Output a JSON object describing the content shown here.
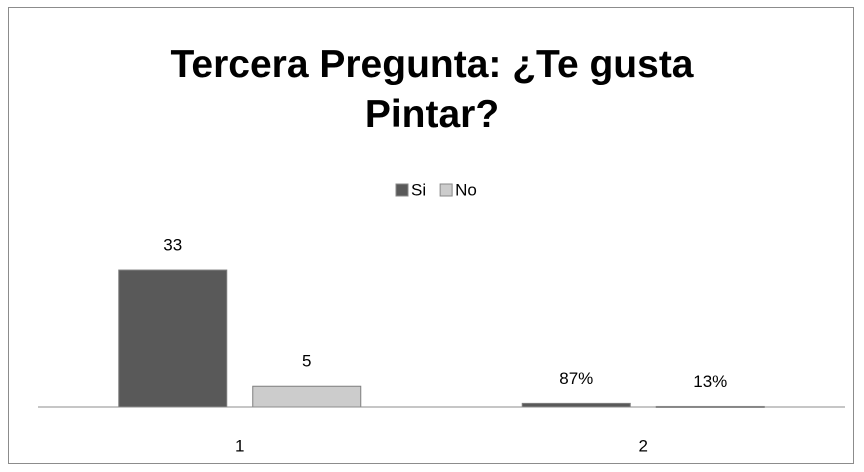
{
  "chart_data": {
    "type": "bar",
    "title": "Tercera Pregunta: ¿Te gusta Pintar?",
    "categories": [
      "1",
      "2"
    ],
    "series": [
      {
        "name": "Si",
        "color": "#595959",
        "values": [
          33,
          0.87
        ],
        "value_labels": [
          "33",
          "87%"
        ]
      },
      {
        "name": "No",
        "color": "#cccccc",
        "values": [
          5,
          0.13
        ],
        "value_labels": [
          "5",
          "13%"
        ]
      }
    ],
    "ylim": [
      0,
      40
    ],
    "legend": "top"
  }
}
